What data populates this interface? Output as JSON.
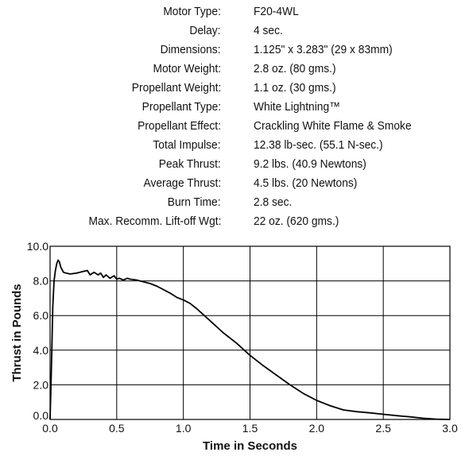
{
  "specs": [
    {
      "label": "Motor Type:",
      "value": "F20-4WL"
    },
    {
      "label": "Delay:",
      "value": "4 sec."
    },
    {
      "label": "Dimensions:",
      "value": "1.125\" x 3.283\" (29 x 83mm)"
    },
    {
      "label": "Motor Weight:",
      "value": "2.8 oz. (80 gms.)"
    },
    {
      "label": "Propellant Weight:",
      "value": "1.1 oz. (30 gms.)"
    },
    {
      "label": "Propellant Type:",
      "value": "White Lightning™"
    },
    {
      "label": "Propellant Effect:",
      "value": "Crackling White Flame & Smoke"
    },
    {
      "label": "Total  Impulse:",
      "value": "12.38 lb-sec. (55.1 N-sec.)"
    },
    {
      "label": "Peak Thrust:",
      "value": "9.2 lbs. (40.9 Newtons)"
    },
    {
      "label": "Average Thrust:",
      "value": "4.5 lbs. (20 Newtons)"
    },
    {
      "label": "Burn Time:",
      "value": "2.8 sec."
    },
    {
      "label": "Max. Recomm. Lift-off Wgt:",
      "value": "22 oz. (620 gms.)"
    }
  ],
  "chart_data": {
    "type": "line",
    "title": "",
    "xlabel": "Time in Seconds",
    "ylabel": "Thrust in Pounds",
    "xlim": [
      0,
      3.0
    ],
    "ylim": [
      0,
      10.0
    ],
    "grid": true,
    "x_ticks": [
      "0.0",
      "0.5",
      "1.0",
      "1.5",
      "2.0",
      "2.5",
      "3.0"
    ],
    "y_ticks": [
      "0.0",
      "2.0",
      "4.0",
      "6.0",
      "8.0",
      "10.0"
    ],
    "color": "#000000",
    "series": [
      {
        "x": [
          0.0,
          0.01,
          0.02,
          0.03,
          0.04,
          0.05,
          0.06,
          0.07,
          0.08,
          0.1,
          0.12,
          0.15,
          0.2,
          0.25,
          0.28,
          0.3,
          0.33,
          0.36,
          0.38,
          0.4,
          0.42,
          0.45,
          0.48,
          0.5,
          0.52,
          0.55,
          0.58,
          0.6,
          0.65,
          0.7,
          0.75,
          0.8,
          0.85,
          0.9,
          0.95,
          1.0,
          1.05,
          1.1,
          1.2,
          1.3,
          1.4,
          1.5,
          1.6,
          1.7,
          1.8,
          1.9,
          2.0,
          2.1,
          2.2,
          2.3,
          2.4,
          2.5,
          2.6,
          2.7,
          2.8,
          2.9,
          3.0
        ],
        "y": [
          0.0,
          3.0,
          6.5,
          8.0,
          8.6,
          9.0,
          9.2,
          9.1,
          8.8,
          8.5,
          8.45,
          8.4,
          8.45,
          8.55,
          8.6,
          8.35,
          8.5,
          8.35,
          8.45,
          8.2,
          8.35,
          8.15,
          8.3,
          8.1,
          8.15,
          8.05,
          8.15,
          8.1,
          8.05,
          7.95,
          7.85,
          7.7,
          7.5,
          7.3,
          7.05,
          6.9,
          6.7,
          6.4,
          5.7,
          5.0,
          4.4,
          3.7,
          3.1,
          2.55,
          2.0,
          1.5,
          1.1,
          0.8,
          0.55,
          0.45,
          0.38,
          0.3,
          0.22,
          0.15,
          0.07,
          0.02,
          0.0
        ]
      }
    ]
  }
}
